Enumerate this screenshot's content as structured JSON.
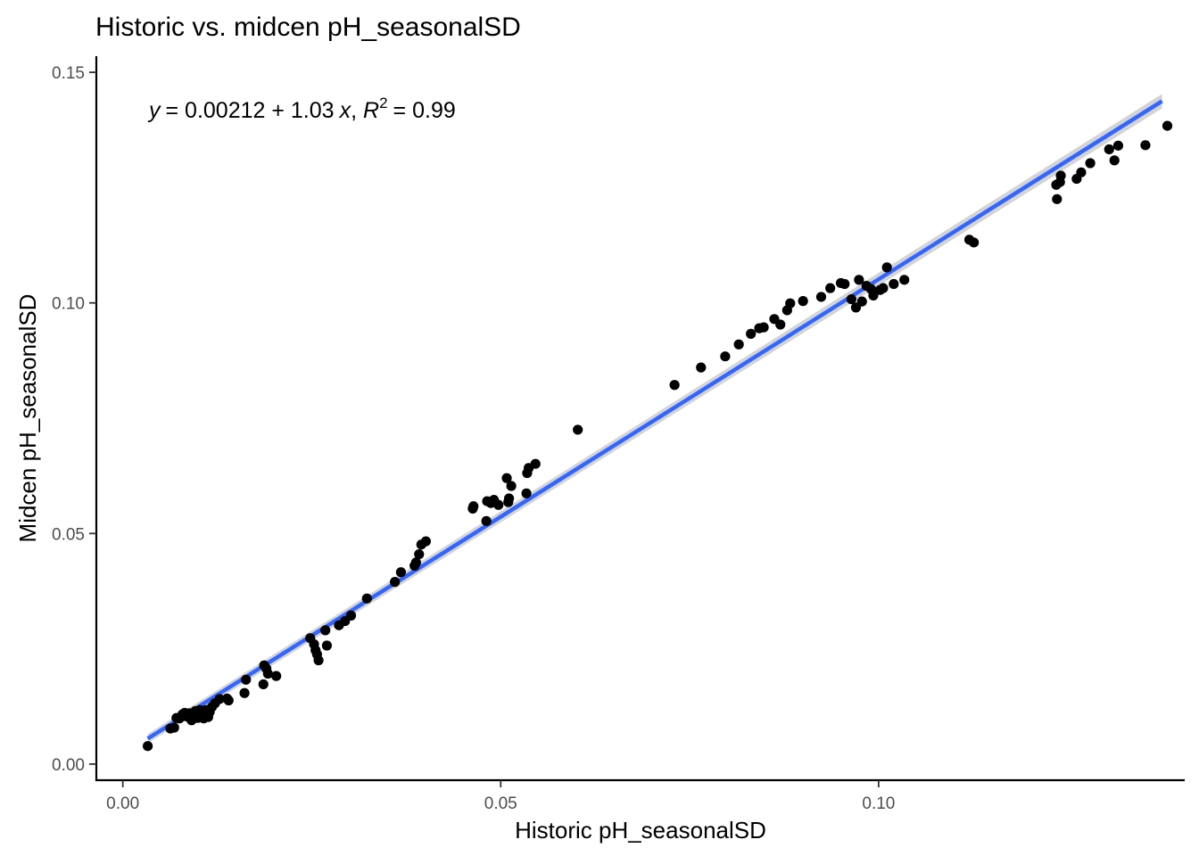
{
  "chart_data": {
    "type": "scatter",
    "title": "Historic vs. midcen pH_seasonalSD",
    "xlabel": "Historic pH_seasonalSD",
    "ylabel": "Midcen pH_seasonalSD",
    "xlim": [
      -0.0035,
      0.1405
    ],
    "ylim": [
      -0.0035,
      0.1535
    ],
    "xticks": [
      0.0,
      0.05,
      0.1
    ],
    "xtick_labels": [
      "0.00",
      "0.05",
      "0.10"
    ],
    "yticks": [
      0.0,
      0.05,
      0.1,
      0.15
    ],
    "ytick_labels": [
      "0.00",
      "0.05",
      "0.10",
      "0.15"
    ],
    "grid": false,
    "regression": {
      "intercept": 0.00212,
      "slope": 1.03,
      "x_range": [
        0.0033,
        0.1375
      ],
      "color": "#3366FF",
      "ci_color": "#cccccc"
    },
    "equation": {
      "y": "y",
      "eq": "= 0.00212 + 1.03",
      "x": "x",
      "sep": ",",
      "r": "R",
      "sup": "2",
      "r2": "= 0.99"
    },
    "point_color": "#000000",
    "points": [
      [
        0.0033,
        0.0039
      ],
      [
        0.0063,
        0.0077
      ],
      [
        0.0068,
        0.0079
      ],
      [
        0.0071,
        0.01
      ],
      [
        0.0075,
        0.0099
      ],
      [
        0.0079,
        0.0108
      ],
      [
        0.0082,
        0.0111
      ],
      [
        0.0085,
        0.0103
      ],
      [
        0.0088,
        0.011
      ],
      [
        0.0091,
        0.0095
      ],
      [
        0.0094,
        0.0106
      ],
      [
        0.0096,
        0.0115
      ],
      [
        0.0099,
        0.01
      ],
      [
        0.0102,
        0.0117
      ],
      [
        0.0104,
        0.0108
      ],
      [
        0.0107,
        0.0099
      ],
      [
        0.011,
        0.0117
      ],
      [
        0.0113,
        0.0102
      ],
      [
        0.0115,
        0.0113
      ],
      [
        0.0118,
        0.0124
      ],
      [
        0.0122,
        0.0132
      ],
      [
        0.0128,
        0.0141
      ],
      [
        0.0138,
        0.0142
      ],
      [
        0.014,
        0.0138
      ],
      [
        0.0161,
        0.0154
      ],
      [
        0.0163,
        0.0183
      ],
      [
        0.0186,
        0.0173
      ],
      [
        0.0187,
        0.0214
      ],
      [
        0.019,
        0.0207
      ],
      [
        0.0192,
        0.0196
      ],
      [
        0.0203,
        0.0191
      ],
      [
        0.0248,
        0.0273
      ],
      [
        0.0253,
        0.026
      ],
      [
        0.0255,
        0.0247
      ],
      [
        0.0257,
        0.0238
      ],
      [
        0.0259,
        0.0225
      ],
      [
        0.0268,
        0.029
      ],
      [
        0.027,
        0.0257
      ],
      [
        0.0286,
        0.0301
      ],
      [
        0.0294,
        0.031
      ],
      [
        0.0302,
        0.0322
      ],
      [
        0.0323,
        0.0359
      ],
      [
        0.036,
        0.0395
      ],
      [
        0.0368,
        0.0416
      ],
      [
        0.0386,
        0.043
      ],
      [
        0.0388,
        0.0437
      ],
      [
        0.0392,
        0.0455
      ],
      [
        0.0395,
        0.0476
      ],
      [
        0.0401,
        0.0483
      ],
      [
        0.0463,
        0.0554
      ],
      [
        0.0464,
        0.0559
      ],
      [
        0.0481,
        0.0527
      ],
      [
        0.0482,
        0.057
      ],
      [
        0.0487,
        0.0566
      ],
      [
        0.0491,
        0.0573
      ],
      [
        0.0497,
        0.0562
      ],
      [
        0.0508,
        0.062
      ],
      [
        0.051,
        0.0568
      ],
      [
        0.0511,
        0.0576
      ],
      [
        0.0514,
        0.0603
      ],
      [
        0.0534,
        0.0587
      ],
      [
        0.0535,
        0.0631
      ],
      [
        0.0537,
        0.0642
      ],
      [
        0.0546,
        0.0651
      ],
      [
        0.0602,
        0.0725
      ],
      [
        0.073,
        0.0822
      ],
      [
        0.0765,
        0.086
      ],
      [
        0.0797,
        0.0884
      ],
      [
        0.0815,
        0.091
      ],
      [
        0.0831,
        0.0933
      ],
      [
        0.0842,
        0.0945
      ],
      [
        0.0848,
        0.0947
      ],
      [
        0.0862,
        0.0965
      ],
      [
        0.087,
        0.0953
      ],
      [
        0.0879,
        0.0984
      ],
      [
        0.0883,
        0.0999
      ],
      [
        0.09,
        0.1004
      ],
      [
        0.0924,
        0.1013
      ],
      [
        0.0936,
        0.1032
      ],
      [
        0.095,
        0.1043
      ],
      [
        0.0955,
        0.1041
      ],
      [
        0.0964,
        0.1008
      ],
      [
        0.097,
        0.099
      ],
      [
        0.0974,
        0.105
      ],
      [
        0.0978,
        0.1003
      ],
      [
        0.0984,
        0.1037
      ],
      [
        0.099,
        0.103
      ],
      [
        0.0993,
        0.1016
      ],
      [
        0.1002,
        0.1028
      ],
      [
        0.1006,
        0.1032
      ],
      [
        0.1011,
        0.1077
      ],
      [
        0.102,
        0.1041
      ],
      [
        0.1034,
        0.105
      ],
      [
        0.112,
        0.1137
      ],
      [
        0.1126,
        0.1131
      ],
      [
        0.1235,
        0.1256
      ],
      [
        0.1236,
        0.1225
      ],
      [
        0.124,
        0.1262
      ],
      [
        0.1241,
        0.1276
      ],
      [
        0.1262,
        0.1269
      ],
      [
        0.1268,
        0.1283
      ],
      [
        0.128,
        0.1303
      ],
      [
        0.1305,
        0.1333
      ],
      [
        0.1312,
        0.1309
      ],
      [
        0.1317,
        0.1341
      ],
      [
        0.1353,
        0.1342
      ],
      [
        0.1382,
        0.1384
      ]
    ]
  }
}
